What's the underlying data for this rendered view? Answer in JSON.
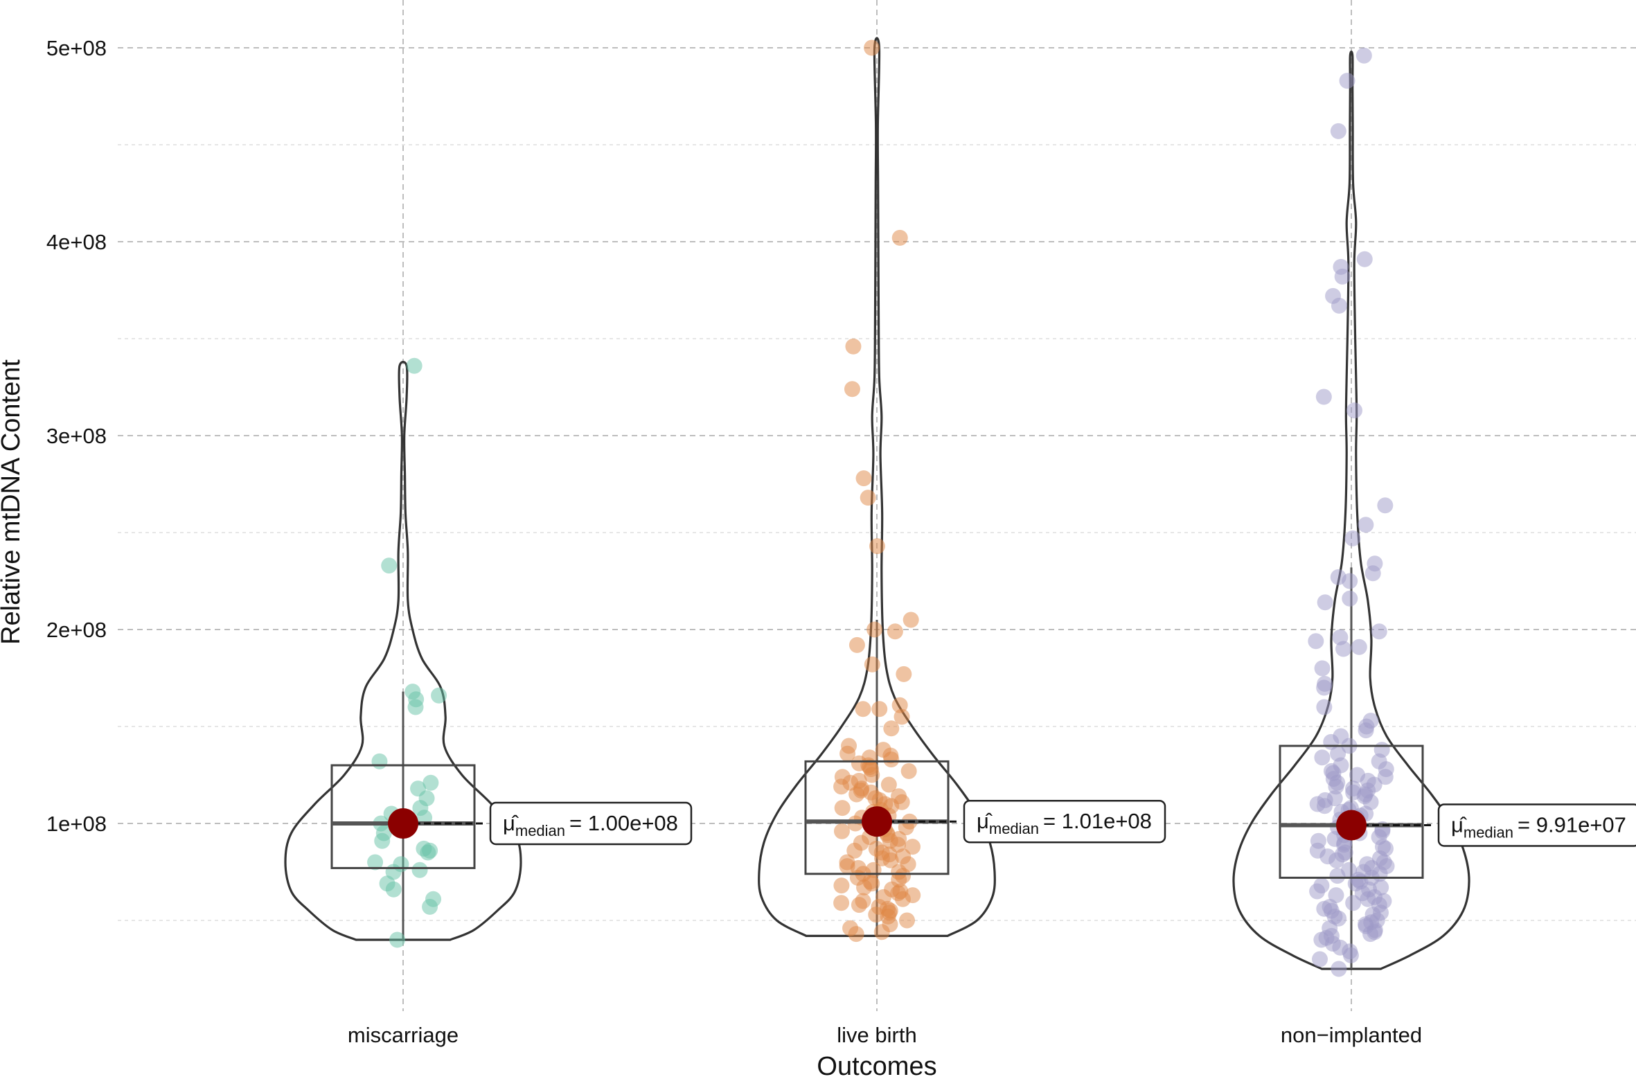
{
  "chart_data": {
    "type": "violin-box",
    "title": "",
    "xlabel": "Outcomes",
    "ylabel": "Relative mtDNA Content",
    "ylim": [
      -15000000.0,
      515000000.0
    ],
    "yticks": [
      100000000,
      200000000,
      300000000,
      400000000,
      500000000
    ],
    "ytick_labels": [
      "1e+08",
      "2e+08",
      "3e+08",
      "4e+08",
      "5e+08"
    ],
    "ygrid_minor": [
      50000000,
      150000000,
      250000000,
      350000000,
      450000000
    ],
    "categories": [
      "miscarriage",
      "live birth",
      "non−implanted"
    ],
    "groups": [
      {
        "name": "miscarriage",
        "color": "#66C2A5",
        "min": 40000000,
        "q1": 77000000,
        "median": 100000000,
        "q3": 130000000,
        "whisker_hi": 168000000,
        "max": 336000000,
        "annotation_symbol": "μ̂",
        "annotation_subscript": "median",
        "annotation_value": "= 1.00e+08",
        "violin_profile": [
          [
            40000000,
            0.4
          ],
          [
            45000000,
            0.6
          ],
          [
            55000000,
            0.8
          ],
          [
            65000000,
            0.95
          ],
          [
            80000000,
            1.0
          ],
          [
            95000000,
            0.95
          ],
          [
            110000000,
            0.75
          ],
          [
            125000000,
            0.5
          ],
          [
            140000000,
            0.35
          ],
          [
            155000000,
            0.36
          ],
          [
            170000000,
            0.32
          ],
          [
            185000000,
            0.16
          ],
          [
            200000000,
            0.08
          ],
          [
            215000000,
            0.04
          ],
          [
            240000000,
            0.04
          ],
          [
            260000000,
            0.02
          ],
          [
            280000000,
            0.015
          ],
          [
            300000000,
            0.01
          ],
          [
            320000000,
            0.03
          ],
          [
            336000000,
            0.03
          ]
        ],
        "points": [
          336,
          233,
          168,
          166,
          164,
          160,
          132,
          121,
          118,
          113,
          108,
          105,
          103,
          100,
          99,
          95,
          91,
          87,
          86,
          85,
          80,
          79,
          76,
          75,
          69,
          66,
          61,
          57,
          40
        ]
      },
      {
        "name": "live birth",
        "color": "#E08745",
        "min": 42000000,
        "q1": 74000000,
        "median": 101000000,
        "q3": 132000000,
        "whisker_hi": 205000000,
        "max": 500000000,
        "annotation_symbol": "μ̂",
        "annotation_subscript": "median",
        "annotation_value": "= 1.01e+08",
        "violin_profile": [
          [
            42000000,
            0.6
          ],
          [
            50000000,
            0.85
          ],
          [
            62000000,
            0.98
          ],
          [
            75000000,
            1.0
          ],
          [
            90000000,
            0.96
          ],
          [
            105000000,
            0.85
          ],
          [
            120000000,
            0.68
          ],
          [
            135000000,
            0.48
          ],
          [
            150000000,
            0.3
          ],
          [
            165000000,
            0.15
          ],
          [
            180000000,
            0.08
          ],
          [
            200000000,
            0.05
          ],
          [
            230000000,
            0.04
          ],
          [
            260000000,
            0.045
          ],
          [
            290000000,
            0.03
          ],
          [
            310000000,
            0.04
          ],
          [
            330000000,
            0.02
          ],
          [
            360000000,
            0.015
          ],
          [
            400000000,
            0.012
          ],
          [
            430000000,
            0.01
          ],
          [
            460000000,
            0.008
          ],
          [
            500000000,
            0.02
          ]
        ],
        "points": [
          500,
          402,
          346,
          324,
          278,
          268,
          243,
          205,
          200,
          199,
          192,
          182,
          177,
          161,
          159,
          159,
          155,
          149,
          140,
          138,
          136,
          135,
          134,
          133,
          131,
          130,
          129,
          128,
          127,
          125,
          124,
          122,
          121,
          120,
          119,
          118,
          117,
          116,
          115,
          114,
          113,
          112,
          111,
          110,
          109,
          108,
          107,
          106,
          105,
          104,
          103,
          102,
          101,
          100,
          99,
          98,
          97,
          96,
          95,
          94,
          93,
          92,
          91,
          90,
          89,
          88,
          87,
          86,
          85,
          84,
          83,
          82,
          81,
          80,
          79,
          78,
          77,
          76,
          75,
          74,
          73,
          72,
          71,
          70,
          69,
          68,
          67,
          66,
          65,
          64,
          63,
          62,
          61,
          60,
          59,
          58,
          57,
          56,
          55,
          54,
          53,
          52,
          50,
          48,
          46,
          44,
          43
        ]
      },
      {
        "name": "non−implanted",
        "color": "#9E9AC8",
        "min": 25000000,
        "q1": 72000000,
        "median": 99100000,
        "q3": 140000000,
        "whisker_hi": 232000000,
        "max": 496000000,
        "annotation_symbol": "μ̂",
        "annotation_subscript": "median",
        "annotation_value": "= 9.91e+07",
        "violin_profile": [
          [
            25000000,
            0.25
          ],
          [
            32000000,
            0.5
          ],
          [
            42000000,
            0.78
          ],
          [
            55000000,
            0.95
          ],
          [
            70000000,
            1.0
          ],
          [
            85000000,
            0.96
          ],
          [
            100000000,
            0.85
          ],
          [
            115000000,
            0.68
          ],
          [
            130000000,
            0.48
          ],
          [
            145000000,
            0.3
          ],
          [
            160000000,
            0.2
          ],
          [
            175000000,
            0.16
          ],
          [
            195000000,
            0.17
          ],
          [
            215000000,
            0.14
          ],
          [
            235000000,
            0.08
          ],
          [
            260000000,
            0.05
          ],
          [
            290000000,
            0.04
          ],
          [
            310000000,
            0.045
          ],
          [
            330000000,
            0.04
          ],
          [
            360000000,
            0.03
          ],
          [
            390000000,
            0.025
          ],
          [
            410000000,
            0.04
          ],
          [
            430000000,
            0.015
          ],
          [
            460000000,
            0.012
          ],
          [
            480000000,
            0.01
          ],
          [
            496000000,
            0.01
          ]
        ],
        "points": [
          496,
          483,
          457,
          391,
          387,
          382,
          372,
          367,
          320,
          313,
          264,
          254,
          247,
          234,
          229,
          227,
          225,
          216,
          214,
          199,
          196,
          194,
          191,
          190,
          180,
          172,
          170,
          160,
          153,
          150,
          148,
          145,
          142,
          140,
          138,
          136,
          134,
          132,
          130,
          128,
          127,
          126,
          125,
          124,
          123,
          122,
          121,
          120,
          119,
          118,
          117,
          116,
          115,
          114,
          113,
          112,
          111,
          110,
          109,
          108,
          107,
          106,
          105,
          104,
          103,
          102,
          101,
          100,
          99,
          98,
          97,
          96,
          95,
          94,
          93,
          92,
          91,
          90,
          89,
          88,
          87,
          86,
          85,
          84,
          83,
          82,
          81,
          80,
          79,
          78,
          77,
          76,
          75,
          74,
          73,
          72,
          71,
          70,
          69,
          68,
          67,
          66,
          65,
          64,
          63,
          62,
          61,
          60,
          59,
          58,
          57,
          56,
          55,
          54,
          53,
          52,
          51,
          50,
          49,
          48,
          47,
          46,
          45,
          44,
          43,
          42,
          41,
          40,
          38,
          36,
          34,
          32,
          30,
          25
        ]
      }
    ],
    "median_marker_color": "#8B0000"
  }
}
